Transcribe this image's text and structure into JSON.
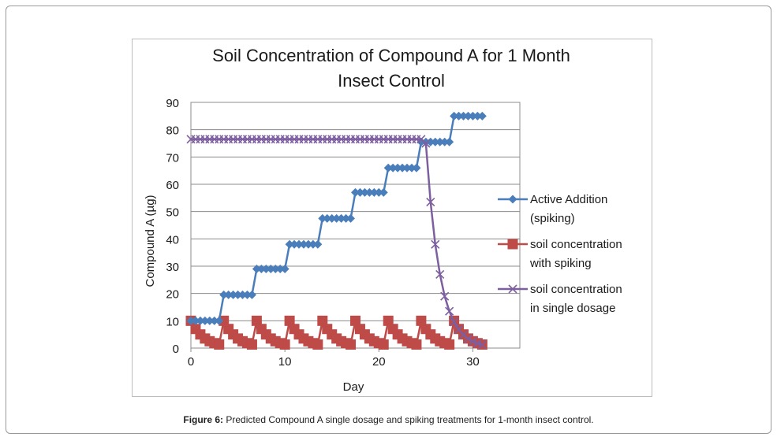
{
  "figure": {
    "caption_label": "Figure 6:",
    "caption_text": " Predicted Compound A single dosage and spiking treatments for 1-month insect control."
  },
  "chart_data": {
    "type": "line",
    "title_line1": "Soil Concentration of Compound A for 1 Month",
    "title_line2": "Insect Control",
    "xlabel": "Day",
    "ylabel": "Compound A (µg)",
    "xlim": [
      0,
      35
    ],
    "ylim": [
      0,
      90
    ],
    "xticks": [
      0,
      10,
      20,
      30
    ],
    "yticks": [
      0,
      10,
      20,
      30,
      40,
      50,
      60,
      70,
      80,
      90
    ],
    "grid": true,
    "legend_position": "right",
    "series": [
      {
        "name": "Active Addition (spiking)",
        "legend_line1": "Active Addition",
        "legend_line2": "(spiking)",
        "color": "#4a7ebb",
        "marker": "diamond",
        "x": [
          0,
          0.5,
          1,
          1.5,
          2,
          2.5,
          3,
          3.5,
          4,
          4.5,
          5,
          5.5,
          6,
          6.5,
          7,
          7.5,
          8,
          8.5,
          9,
          9.5,
          10,
          10.5,
          11,
          11.5,
          12,
          12.5,
          13,
          13.5,
          14,
          14.5,
          15,
          15.5,
          16,
          16.5,
          17,
          17.5,
          18,
          18.5,
          19,
          19.5,
          20,
          20.5,
          21,
          21.5,
          22,
          22.5,
          23,
          23.5,
          24,
          24.5,
          25,
          25.5,
          26,
          26.5,
          27,
          27.5,
          28,
          28.5,
          29,
          29.5,
          30,
          30.5,
          31
        ],
        "y": [
          10,
          10,
          10,
          10,
          10,
          10,
          10,
          19.5,
          19.5,
          19.5,
          19.5,
          19.5,
          19.5,
          19.5,
          29,
          29,
          29,
          29,
          29,
          29,
          29,
          38,
          38,
          38,
          38,
          38,
          38,
          38,
          47.5,
          47.5,
          47.5,
          47.5,
          47.5,
          47.5,
          47.5,
          57,
          57,
          57,
          57,
          57,
          57,
          57,
          66,
          66,
          66,
          66,
          66,
          66,
          66,
          75.5,
          75.5,
          75.5,
          75.5,
          75.5,
          75.5,
          75.5,
          85,
          85,
          85,
          85,
          85,
          85,
          85
        ]
      },
      {
        "name": "soil concentration with spiking",
        "legend_line1": "soil concentration",
        "legend_line2": "with spiking",
        "color": "#be4b48",
        "marker": "square",
        "x": [
          0,
          0.5,
          1,
          1.5,
          2,
          2.5,
          3,
          3.5,
          4,
          4.5,
          5,
          5.5,
          6,
          6.5,
          7,
          7.5,
          8,
          8.5,
          9,
          9.5,
          10,
          10.5,
          11,
          11.5,
          12,
          12.5,
          13,
          13.5,
          14,
          14.5,
          15,
          15.5,
          16,
          16.5,
          17,
          17.5,
          18,
          18.5,
          19,
          19.5,
          20,
          20.5,
          21,
          21.5,
          22,
          22.5,
          23,
          23.5,
          24,
          24.5,
          25,
          25.5,
          26,
          26.5,
          27,
          27.5,
          28,
          28.5,
          29,
          29.5,
          30,
          30.5,
          31
        ],
        "y": [
          10,
          7,
          5,
          3.5,
          2.5,
          1.8,
          1.3,
          10,
          7,
          5,
          3.5,
          2.5,
          1.8,
          1.3,
          10,
          7,
          5,
          3.5,
          2.5,
          1.8,
          1.3,
          10,
          7,
          5,
          3.5,
          2.5,
          1.8,
          1.3,
          10,
          7,
          5,
          3.5,
          2.5,
          1.8,
          1.3,
          10,
          7,
          5,
          3.5,
          2.5,
          1.8,
          1.3,
          10,
          7,
          5,
          3.5,
          2.5,
          1.8,
          1.3,
          10,
          7,
          5,
          3.5,
          2.5,
          1.8,
          1.3,
          10,
          7,
          5,
          3.5,
          2.5,
          1.8,
          1.3
        ]
      },
      {
        "name": "soil concentration in single dosage",
        "legend_line1": "soil concentration",
        "legend_line2": "in single dosage",
        "color": "#7d5fa0",
        "marker": "x",
        "x": [
          0,
          0.5,
          1,
          1.5,
          2,
          2.5,
          3,
          3.5,
          4,
          4.5,
          5,
          5.5,
          6,
          6.5,
          7,
          7.5,
          8,
          8.5,
          9,
          9.5,
          10,
          10.5,
          11,
          11.5,
          12,
          12.5,
          13,
          13.5,
          14,
          14.5,
          15,
          15.5,
          16,
          16.5,
          17,
          17.5,
          18,
          18.5,
          19,
          19.5,
          20,
          20.5,
          21,
          21.5,
          22,
          22.5,
          23,
          23.5,
          24,
          24.5,
          25,
          25.5,
          26,
          26.5,
          27,
          27.5,
          28,
          28.5,
          29,
          29.5,
          30,
          30.5,
          31
        ],
        "y": [
          76.5,
          76.5,
          76.5,
          76.5,
          76.5,
          76.5,
          76.5,
          76.5,
          76.5,
          76.5,
          76.5,
          76.5,
          76.5,
          76.5,
          76.5,
          76.5,
          76.5,
          76.5,
          76.5,
          76.5,
          76.5,
          76.5,
          76.5,
          76.5,
          76.5,
          76.5,
          76.5,
          76.5,
          76.5,
          76.5,
          76.5,
          76.5,
          76.5,
          76.5,
          76.5,
          76.5,
          76.5,
          76.5,
          76.5,
          76.5,
          76.5,
          76.5,
          76.5,
          76.5,
          76.5,
          76.5,
          76.5,
          76.5,
          76.5,
          76.5,
          75,
          53.5,
          38,
          27,
          19,
          13.5,
          9.5,
          6.8,
          4.8,
          3.4,
          2.4,
          1.7,
          1.2
        ]
      }
    ]
  }
}
